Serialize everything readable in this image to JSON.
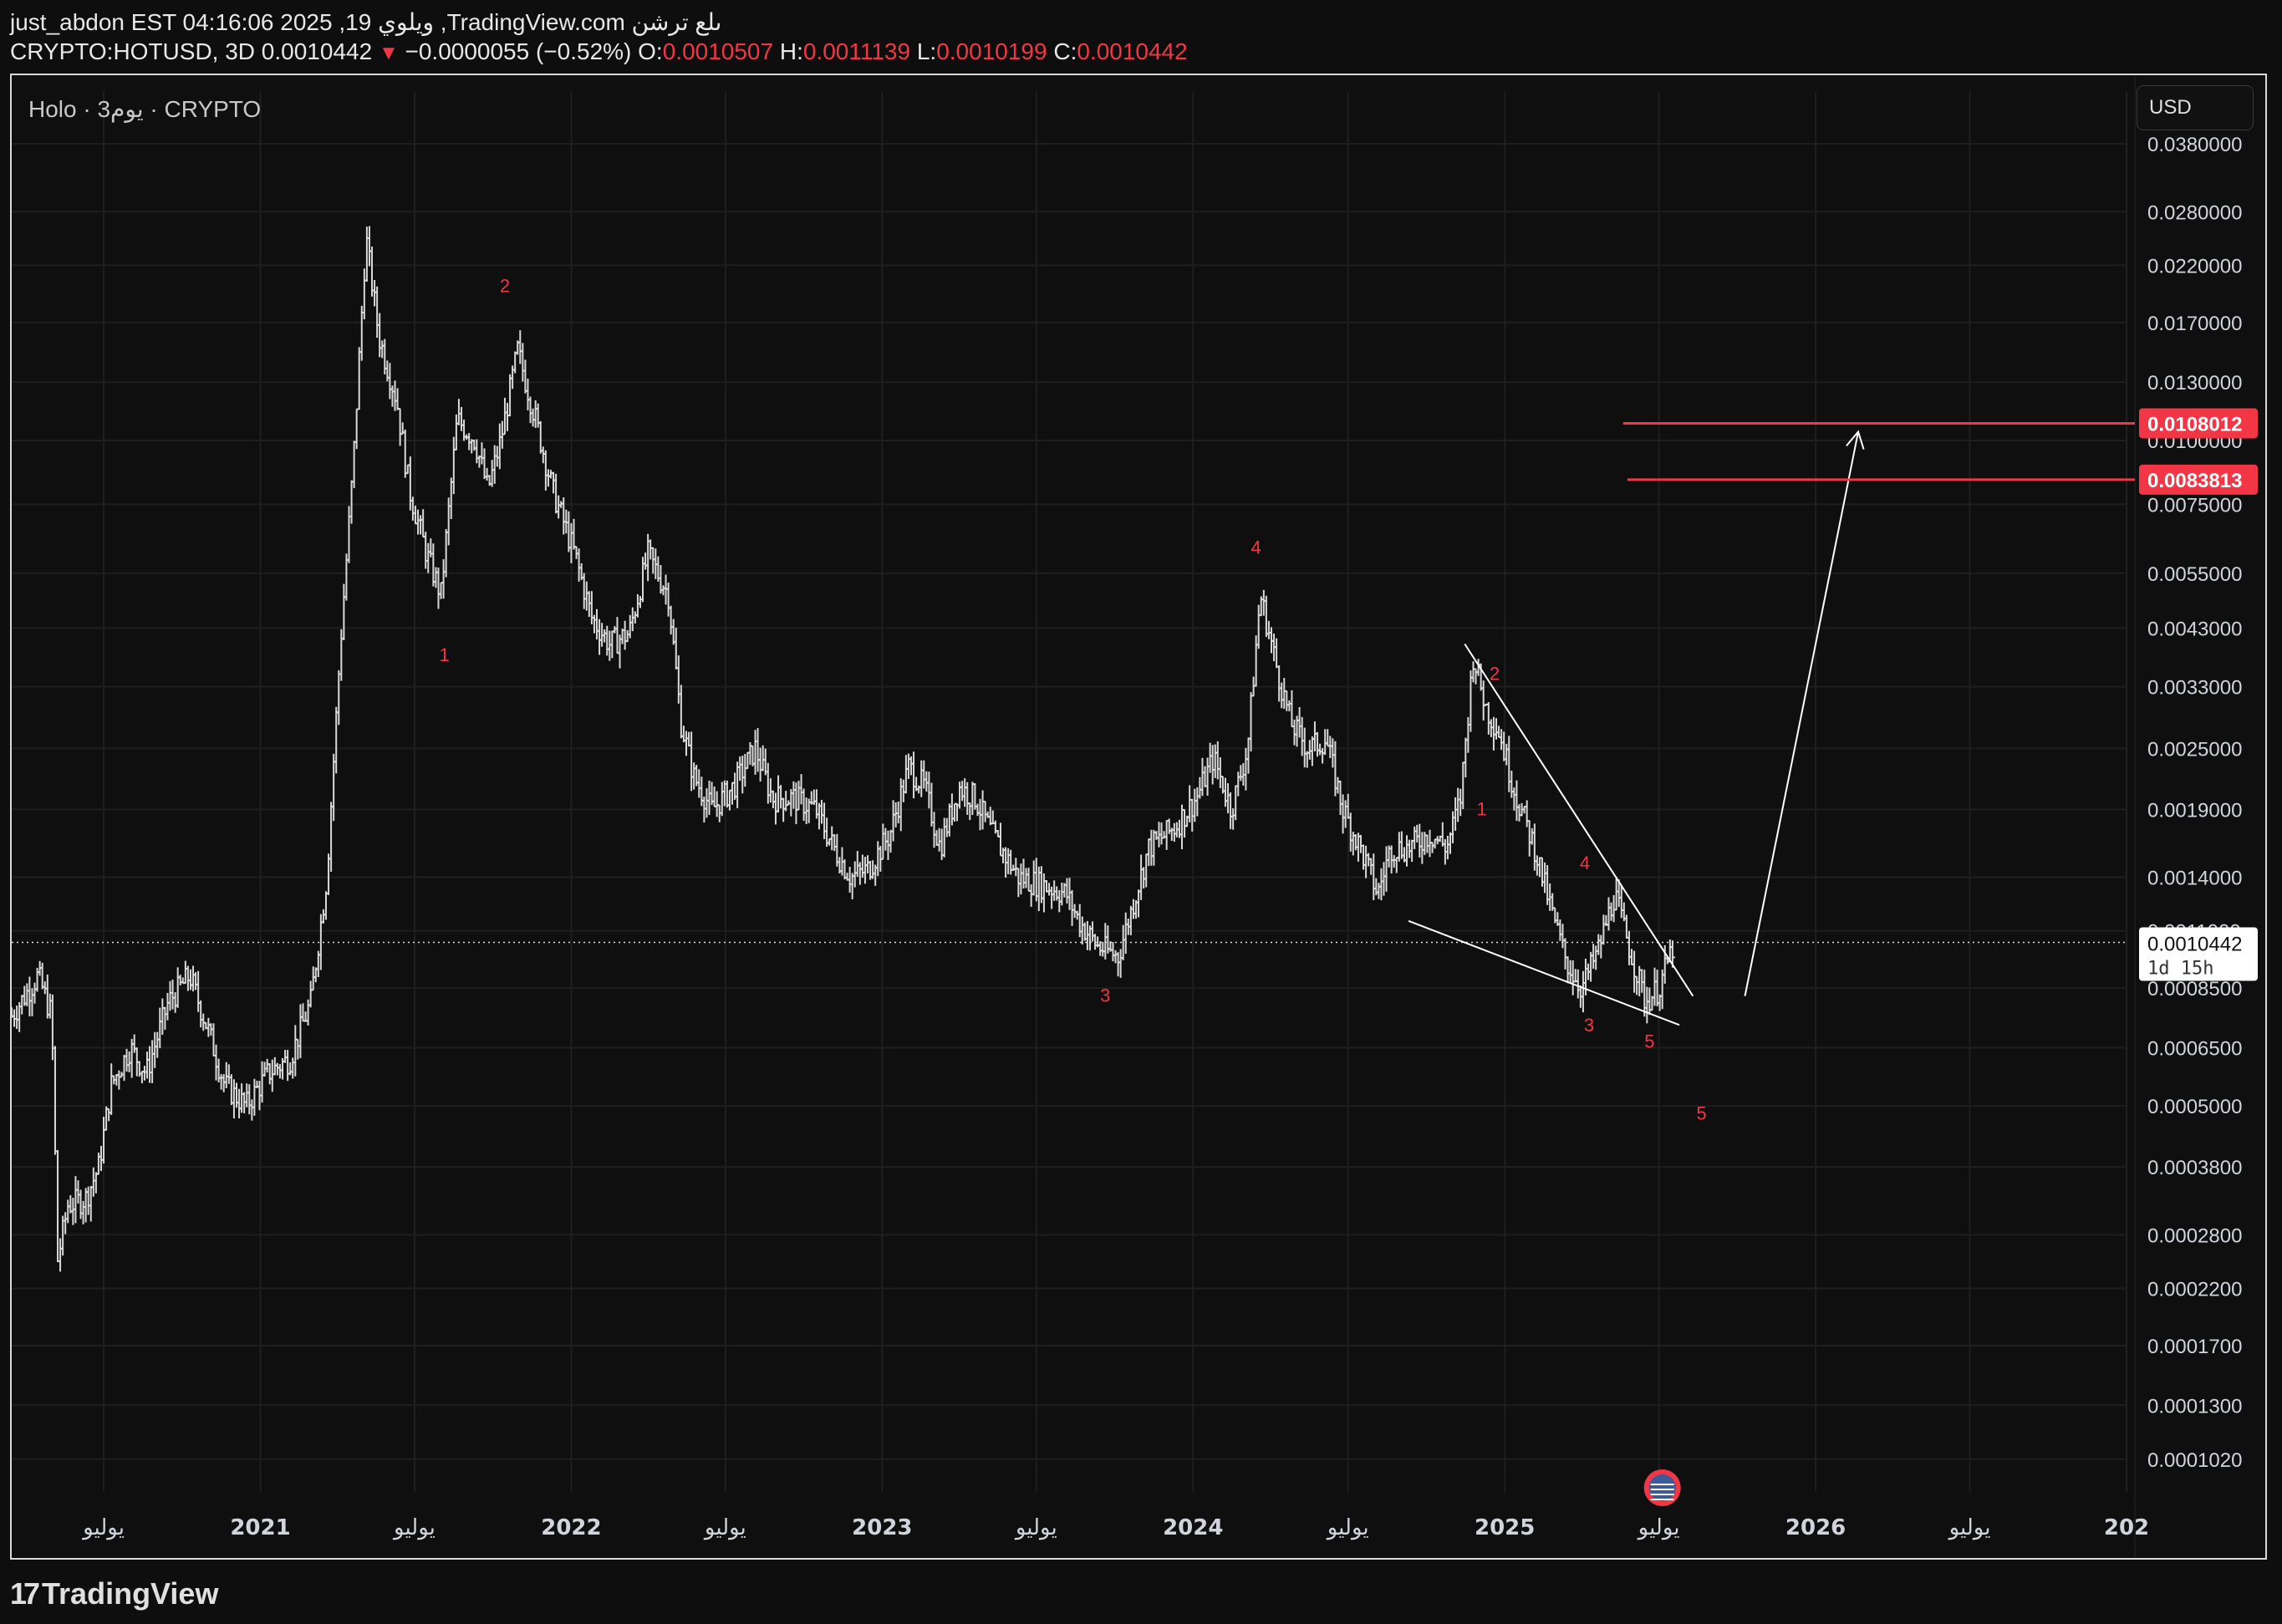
{
  "header": {
    "line1": "just_abdon EST 04:16:06 2025 ,19 ويلوي ,TradingView.com ىلع ترشن",
    "symbol": "CRYPTO:HOTUSD, 3D",
    "last": "0.0010442",
    "change": "−0.0000055 (−0.52%)",
    "open_label": "O:",
    "open": "0.0010507",
    "high_label": "H:",
    "high": "0.0011139",
    "low_label": "L:",
    "low": "0.0010199",
    "close_label": "C:",
    "close": "0.0010442"
  },
  "chart_header": {
    "title": "Holo · 3يوم · CRYPTO",
    "currency": "USD"
  },
  "footer": {
    "logo_text": "TradingView"
  },
  "chart_data": {
    "type": "bar",
    "scale": "log",
    "grid": true,
    "ylim": [
      8.8e-05,
      0.048
    ],
    "y_ticks": [
      "0.0380000",
      "0.0280000",
      "0.0220000",
      "0.0170000",
      "0.0130000",
      "0.0100000",
      "0.0075000",
      "0.0055000",
      "0.0043000",
      "0.0033000",
      "0.0025000",
      "0.0019000",
      "0.0014000",
      "0.0011000",
      "0.0008500",
      "0.0006500",
      "0.0005000",
      "0.0003800",
      "0.0002800",
      "0.0002200",
      "0.0001700",
      "0.0001300",
      "0.0001020"
    ],
    "x_ticks": [
      "يوليو",
      "2021",
      "يوليو",
      "2022",
      "يوليو",
      "2023",
      "يوليو",
      "2024",
      "يوليو",
      "2025",
      "يوليو",
      "2026",
      "يوليو",
      "202"
    ],
    "x_range": [
      "2020-03-15",
      "2027-01-01"
    ],
    "price_series": [
      {
        "date": "2020-03-15",
        "price": 0.00075
      },
      {
        "date": "2020-04-15",
        "price": 0.0009
      },
      {
        "date": "2020-05-01",
        "price": 0.00075
      },
      {
        "date": "2020-05-08",
        "price": 0.00025
      },
      {
        "date": "2020-05-20",
        "price": 0.00032
      },
      {
        "date": "2020-06-10",
        "price": 0.00033
      },
      {
        "date": "2020-06-25",
        "price": 0.00038
      },
      {
        "date": "2020-07-10",
        "price": 0.00055
      },
      {
        "date": "2020-08-01",
        "price": 0.00065
      },
      {
        "date": "2020-08-20",
        "price": 0.00058
      },
      {
        "date": "2020-09-15",
        "price": 0.0008
      },
      {
        "date": "2020-10-10",
        "price": 0.0009
      },
      {
        "date": "2020-11-01",
        "price": 0.0007
      },
      {
        "date": "2020-11-20",
        "price": 0.00055
      },
      {
        "date": "2020-12-15",
        "price": 0.0005
      },
      {
        "date": "2021-01-10",
        "price": 0.00058
      },
      {
        "date": "2021-02-05",
        "price": 0.00062
      },
      {
        "date": "2021-03-01",
        "price": 0.0008
      },
      {
        "date": "2021-03-20",
        "price": 0.0014
      },
      {
        "date": "2021-04-05",
        "price": 0.004
      },
      {
        "date": "2021-04-20",
        "price": 0.009
      },
      {
        "date": "2021-05-05",
        "price": 0.025
      },
      {
        "date": "2021-05-20",
        "price": 0.016
      },
      {
        "date": "2021-06-10",
        "price": 0.012
      },
      {
        "date": "2021-06-25",
        "price": 0.008
      },
      {
        "date": "2021-07-15",
        "price": 0.006
      },
      {
        "date": "2021-08-01",
        "price": 0.005
      },
      {
        "date": "2021-08-20",
        "price": 0.011
      },
      {
        "date": "2021-09-10",
        "price": 0.01
      },
      {
        "date": "2021-09-25",
        "price": 0.008
      },
      {
        "date": "2021-10-10",
        "price": 0.01
      },
      {
        "date": "2021-10-30",
        "price": 0.015
      },
      {
        "date": "2021-11-20",
        "price": 0.011
      },
      {
        "date": "2021-12-10",
        "price": 0.008
      },
      {
        "date": "2022-01-05",
        "price": 0.006
      },
      {
        "date": "2022-01-25",
        "price": 0.0045
      },
      {
        "date": "2022-02-15",
        "price": 0.004
      },
      {
        "date": "2022-03-10",
        "price": 0.0042
      },
      {
        "date": "2022-04-01",
        "price": 0.006
      },
      {
        "date": "2022-04-25",
        "price": 0.005
      },
      {
        "date": "2022-05-10",
        "price": 0.0028
      },
      {
        "date": "2022-05-25",
        "price": 0.0022
      },
      {
        "date": "2022-06-15",
        "price": 0.0019
      },
      {
        "date": "2022-07-10",
        "price": 0.0021
      },
      {
        "date": "2022-08-05",
        "price": 0.0025
      },
      {
        "date": "2022-08-25",
        "price": 0.002
      },
      {
        "date": "2022-09-20",
        "price": 0.002
      },
      {
        "date": "2022-10-15",
        "price": 0.0019
      },
      {
        "date": "2022-11-05",
        "price": 0.0016
      },
      {
        "date": "2022-11-25",
        "price": 0.0014
      },
      {
        "date": "2022-12-15",
        "price": 0.00145
      },
      {
        "date": "2023-01-10",
        "price": 0.0017
      },
      {
        "date": "2023-02-01",
        "price": 0.0023
      },
      {
        "date": "2023-02-20",
        "price": 0.0021
      },
      {
        "date": "2023-03-10",
        "price": 0.0016
      },
      {
        "date": "2023-04-01",
        "price": 0.0021
      },
      {
        "date": "2023-04-20",
        "price": 0.002
      },
      {
        "date": "2023-05-10",
        "price": 0.0017
      },
      {
        "date": "2023-06-10",
        "price": 0.0014
      },
      {
        "date": "2023-07-10",
        "price": 0.00135
      },
      {
        "date": "2023-08-05",
        "price": 0.0013
      },
      {
        "date": "2023-08-20",
        "price": 0.00115
      },
      {
        "date": "2023-09-10",
        "price": 0.00103
      },
      {
        "date": "2023-10-05",
        "price": 0.00098
      },
      {
        "date": "2023-10-20",
        "price": 0.0012
      },
      {
        "date": "2023-11-10",
        "price": 0.0016
      },
      {
        "date": "2023-12-10",
        "price": 0.00175
      },
      {
        "date": "2024-01-05",
        "price": 0.002
      },
      {
        "date": "2024-01-25",
        "price": 0.0024
      },
      {
        "date": "2024-02-15",
        "price": 0.0019
      },
      {
        "date": "2024-03-05",
        "price": 0.0025
      },
      {
        "date": "2024-03-20",
        "price": 0.005
      },
      {
        "date": "2024-04-10",
        "price": 0.0035
      },
      {
        "date": "2024-04-25",
        "price": 0.0028
      },
      {
        "date": "2024-05-15",
        "price": 0.0025
      },
      {
        "date": "2024-06-05",
        "price": 0.0026
      },
      {
        "date": "2024-06-25",
        "price": 0.0019
      },
      {
        "date": "2024-07-15",
        "price": 0.0016
      },
      {
        "date": "2024-08-05",
        "price": 0.0013
      },
      {
        "date": "2024-08-20",
        "price": 0.0016
      },
      {
        "date": "2024-09-10",
        "price": 0.0016
      },
      {
        "date": "2024-10-05",
        "price": 0.0017
      },
      {
        "date": "2024-10-25",
        "price": 0.0016
      },
      {
        "date": "2024-11-10",
        "price": 0.002
      },
      {
        "date": "2024-11-25",
        "price": 0.0038
      },
      {
        "date": "2024-12-10",
        "price": 0.003
      },
      {
        "date": "2024-12-25",
        "price": 0.0027
      },
      {
        "date": "2025-01-15",
        "price": 0.002
      },
      {
        "date": "2025-02-05",
        "price": 0.0016
      },
      {
        "date": "2025-02-25",
        "price": 0.0012
      },
      {
        "date": "2025-03-15",
        "price": 0.00095
      },
      {
        "date": "2025-04-01",
        "price": 0.00085
      },
      {
        "date": "2025-04-20",
        "price": 0.001
      },
      {
        "date": "2025-05-10",
        "price": 0.0013
      },
      {
        "date": "2025-05-25",
        "price": 0.00105
      },
      {
        "date": "2025-06-15",
        "price": 0.0008
      },
      {
        "date": "2025-07-01",
        "price": 0.00085
      },
      {
        "date": "2025-07-19",
        "price": 0.0010442
      }
    ],
    "wave_labels": [
      {
        "text": "2",
        "date": "2021-10-15",
        "price": 0.0195
      },
      {
        "text": "1",
        "date": "2021-08-05",
        "price": 0.0037
      },
      {
        "text": "4",
        "date": "2024-03-15",
        "price": 0.006
      },
      {
        "text": "3",
        "date": "2023-09-20",
        "price": 0.0008
      },
      {
        "text": "2",
        "date": "2024-12-20",
        "price": 0.0034
      },
      {
        "text": "1",
        "date": "2024-12-05",
        "price": 0.00185
      },
      {
        "text": "4",
        "date": "2025-04-05",
        "price": 0.00145
      },
      {
        "text": "3",
        "date": "2025-04-10",
        "price": 0.0007
      },
      {
        "text": "5",
        "date": "2025-06-20",
        "price": 0.00065
      },
      {
        "text": "5",
        "date": "2025-08-20",
        "price": 0.00047
      }
    ],
    "trend_lines": [
      {
        "from": {
          "date": "2024-11-15",
          "price": 0.004
        },
        "to": {
          "date": "2025-08-10",
          "price": 0.00082
        }
      },
      {
        "from": {
          "date": "2024-09-10",
          "price": 0.00115
        },
        "to": {
          "date": "2025-07-25",
          "price": 0.00072
        }
      },
      {
        "from": {
          "date": "2025-10-10",
          "price": 0.00082
        },
        "to": {
          "date": "2026-02-20",
          "price": 0.0104
        },
        "arrow": true
      }
    ],
    "horizontal_lines": [
      {
        "price": 0.0108012,
        "from": "2025-05-20",
        "label": "0.0108012"
      },
      {
        "price": 0.0083813,
        "from": "2025-05-25",
        "label": "0.0083813"
      }
    ],
    "last_price": {
      "price": 0.0010442,
      "label": "0.0010442",
      "countdown": "1d 15h"
    },
    "colors": {
      "accent": "#f23645",
      "bars": "#d9d9d9",
      "grid": "#1f1f1f"
    }
  }
}
